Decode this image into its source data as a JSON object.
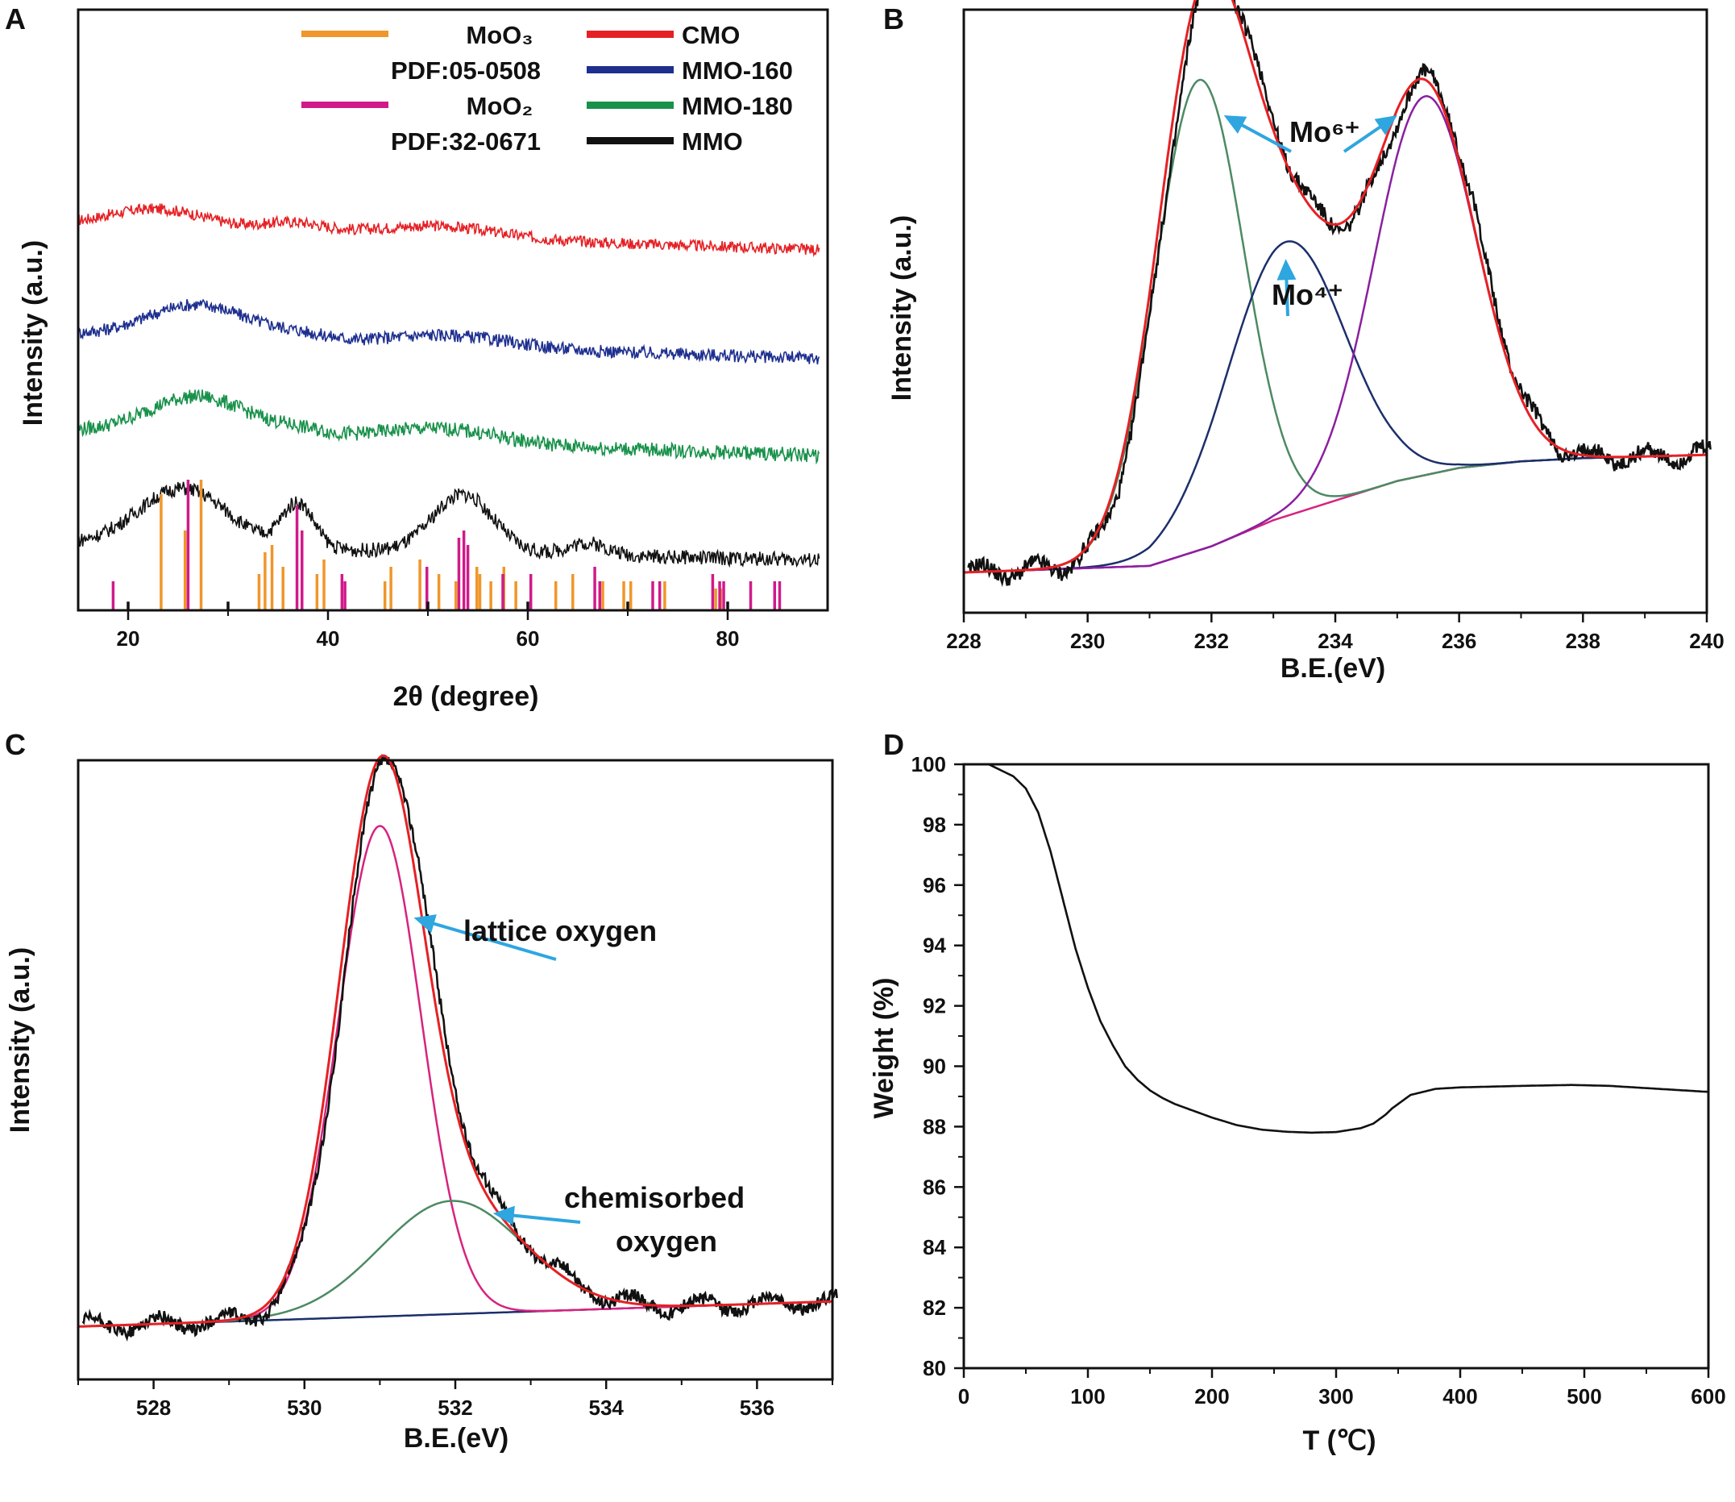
{
  "chart_data": [
    {
      "panel": "A",
      "type": "line",
      "title": "",
      "xlabel": "2θ  (degree)",
      "ylabel": "Intensity  (a.u.)",
      "xlim": [
        15,
        90
      ],
      "xticks": [
        20,
        40,
        60,
        80
      ],
      "yticks": [],
      "series": [
        {
          "name": "CMO",
          "color": "#e52125",
          "offset": 4.3,
          "noise": 0.07,
          "peaks": [
            [
              23,
              0.24,
              5
            ],
            [
              36.5,
              0.12,
              3
            ],
            [
              51,
              0.14,
              6
            ]
          ],
          "base": [
            0.35,
            -0.3
          ]
        },
        {
          "name": "MMO-160",
          "color": "#1e2f8f",
          "offset": 3.0,
          "noise": 0.08,
          "peaks": [
            [
              27,
              0.42,
              5
            ],
            [
              37,
              0.08,
              3
            ],
            [
              52,
              0.14,
              6
            ]
          ],
          "base": [
            0.3,
            -0.3
          ]
        },
        {
          "name": "MMO-180",
          "color": "#18914a",
          "offset": 1.8,
          "noise": 0.09,
          "peaks": [
            [
              27,
              0.48,
              5
            ],
            [
              37,
              0.08,
              3
            ],
            [
              51,
              0.18,
              6
            ]
          ],
          "base": [
            0.3,
            -0.3
          ]
        },
        {
          "name": "MMO",
          "color": "#111111",
          "offset": 0.45,
          "noise": 0.09,
          "peaks": [
            [
              25.5,
              0.72,
              4.5
            ],
            [
              37,
              0.55,
              1.6
            ],
            [
              53.5,
              0.72,
              3
            ],
            [
              66,
              0.15,
              2
            ]
          ],
          "base": [
            0.25,
            -0.2
          ]
        }
      ],
      "reference_lines": [
        {
          "name": "MoO₃",
          "pdf": "PDF:05-0508",
          "color": "#f0962a",
          "positions": [
            23.3,
            25.7,
            27.3,
            33.1,
            33.7,
            34.4,
            35.5,
            38.9,
            39.6,
            45.7,
            46.3,
            49.2,
            51.1,
            52.8,
            54.9,
            55.2,
            56.3,
            57.6,
            58.8,
            62.8,
            64.5,
            67.5,
            69.6,
            70.3,
            73.7,
            78.8,
            79.3
          ],
          "heights": [
            0.8,
            0.55,
            0.9,
            0.25,
            0.4,
            0.45,
            0.3,
            0.25,
            0.35,
            0.2,
            0.3,
            0.35,
            0.25,
            0.2,
            0.3,
            0.25,
            0.2,
            0.3,
            0.2,
            0.2,
            0.25,
            0.2,
            0.2,
            0.2,
            0.2,
            0.15,
            0.15
          ]
        },
        {
          "name": "MoO₂",
          "pdf": "PDF:32-0671",
          "color": "#d01a8a",
          "positions": [
            18.5,
            26.0,
            36.9,
            37.4,
            41.4,
            41.7,
            49.9,
            53.1,
            53.6,
            54.0,
            57.5,
            60.3,
            66.7,
            67.2,
            72.5,
            73.2,
            78.5,
            79.2,
            79.6,
            82.3,
            84.7,
            85.2
          ],
          "heights": [
            0.2,
            0.9,
            0.72,
            0.55,
            0.25,
            0.2,
            0.3,
            0.5,
            0.55,
            0.45,
            0.25,
            0.25,
            0.3,
            0.2,
            0.2,
            0.2,
            0.25,
            0.2,
            0.2,
            0.2,
            0.2,
            0.2
          ]
        },
        {
          "name": "ticks",
          "color": "#111111",
          "positions": [
            20,
            30,
            50,
            60,
            70,
            80
          ],
          "heights": [
            0.06,
            0.06,
            0.06,
            0.06,
            0.06,
            0.06
          ]
        }
      ],
      "legend": [
        {
          "label": "MoO₃",
          "sub": "PDF:05-0508",
          "color": "#f0962a"
        },
        {
          "label": "MoO₂",
          "sub": "PDF:32-0671",
          "color": "#d01a8a"
        },
        {
          "label": "CMO",
          "color": "#e52125"
        },
        {
          "label": "MMO-160",
          "color": "#1e2f8f"
        },
        {
          "label": "MMO-180",
          "color": "#18914a"
        },
        {
          "label": "MMO",
          "color": "#111111"
        }
      ]
    },
    {
      "panel": "B",
      "type": "line",
      "title": "",
      "xlabel": "B.E.(eV)",
      "ylabel": "Intensity (a.u.)",
      "xlim": [
        228,
        240
      ],
      "xticks": [
        228,
        230,
        232,
        234,
        236,
        238,
        240
      ],
      "ylim": [
        0,
        1.0
      ],
      "components": [
        {
          "name": "Mo6+ 3d5/2",
          "color": "#4c8a63",
          "center": 231.8,
          "amp": 0.72,
          "sigma": 0.72
        },
        {
          "name": "Mo4+",
          "color": "#1c2f6b",
          "center": 233.2,
          "amp": 0.42,
          "sigma": 0.95
        },
        {
          "name": "Mo6+ 3d3/2",
          "color": "#8b1fa0",
          "center": 235.45,
          "amp": 0.58,
          "sigma": 0.82
        },
        {
          "name": "background",
          "color": "#d6237f",
          "x": [
            228,
            231,
            232,
            233,
            234,
            235,
            236,
            237,
            238,
            240
          ],
          "y": [
            0.0,
            0.01,
            0.04,
            0.08,
            0.11,
            0.14,
            0.16,
            0.17,
            0.175,
            0.18
          ]
        },
        {
          "name": "envelope",
          "color": "#e52125"
        },
        {
          "name": "raw",
          "color": "#111111",
          "noise": 0.012
        }
      ],
      "annotations": [
        {
          "text": "Mo⁶⁺",
          "arrows": [
            [
              232.2,
              0.7
            ],
            [
              235.0,
              0.7
            ]
          ]
        },
        {
          "text": "Mo⁴⁺",
          "arrows": [
            [
              233.2,
              0.48
            ]
          ]
        }
      ]
    },
    {
      "panel": "C",
      "type": "line",
      "title": "",
      "xlabel": "B.E.(eV)",
      "ylabel": "Intensity (a.u.)",
      "xlim": [
        527,
        537
      ],
      "xticks": [
        528,
        530,
        532,
        534,
        536
      ],
      "ylim": [
        0,
        1.0
      ],
      "components": [
        {
          "name": "lattice oxygen",
          "color": "#d6237f",
          "center": 531.0,
          "amp": 0.78,
          "sigma": 0.55
        },
        {
          "name": "chemisorbed oxygen",
          "color": "#4c8a63",
          "center": 531.95,
          "amp": 0.18,
          "sigma": 0.95
        },
        {
          "name": "background",
          "color": "#1c2f6b",
          "x": [
            527,
            537
          ],
          "y": [
            0.02,
            0.06
          ]
        },
        {
          "name": "envelope",
          "color": "#e52125"
        },
        {
          "name": "raw",
          "color": "#111111",
          "noise": 0.01
        }
      ],
      "annotations": [
        {
          "text": "lattice oxygen",
          "arrows": [
            [
              531.45,
              0.67
            ]
          ]
        },
        {
          "text": "chemisorbed",
          "text2": "oxygen",
          "arrows": [
            [
              532.5,
              0.2
            ]
          ]
        }
      ]
    },
    {
      "panel": "D",
      "type": "line",
      "title": "",
      "xlabel": "T (℃)",
      "ylabel": "Weight (%)",
      "xlim": [
        0,
        600
      ],
      "xticks": [
        0,
        100,
        200,
        300,
        400,
        500,
        600
      ],
      "ylim": [
        80,
        100
      ],
      "yticks": [
        80,
        82,
        84,
        86,
        88,
        90,
        92,
        94,
        96,
        98,
        100
      ],
      "series": [
        {
          "name": "TGA",
          "color": "#111111",
          "x": [
            0,
            20,
            40,
            50,
            60,
            70,
            80,
            90,
            100,
            110,
            120,
            130,
            140,
            150,
            160,
            170,
            180,
            200,
            220,
            240,
            260,
            280,
            300,
            320,
            330,
            340,
            345,
            350,
            360,
            380,
            400,
            450,
            490,
            520,
            560,
            600
          ],
          "y": [
            100,
            100,
            99.6,
            99.2,
            98.4,
            97.1,
            95.5,
            93.9,
            92.6,
            91.5,
            90.7,
            90.0,
            89.55,
            89.2,
            88.95,
            88.75,
            88.6,
            88.3,
            88.05,
            87.9,
            87.83,
            87.8,
            87.82,
            87.95,
            88.1,
            88.4,
            88.6,
            88.75,
            89.05,
            89.25,
            89.3,
            89.35,
            89.38,
            89.35,
            89.25,
            89.15
          ]
        }
      ]
    }
  ]
}
